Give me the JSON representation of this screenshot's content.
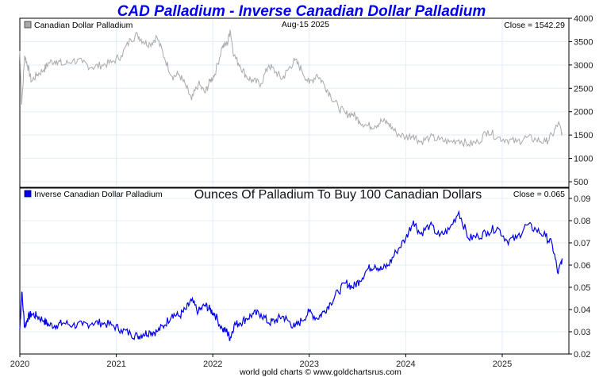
{
  "chart_data": [
    {
      "type": "line",
      "title": "CAD Palladium - Inverse Canadian Dollar Palladium",
      "date_label": "Aug-15  2025",
      "legend": "Canadian Dollar Palladium",
      "legend_color": "#aaaaaa",
      "close_label": "Close = 1542.29",
      "line_color": "#aaaaaa",
      "ylim": [
        500,
        4000
      ],
      "y_ticks": [
        "4000",
        "3500",
        "3000",
        "2500",
        "2000",
        "1500",
        "1000",
        "500"
      ],
      "x_ticks": [
        "2020",
        "2021",
        "2022",
        "2023",
        "2024",
        "2025"
      ],
      "x": [
        2020.0,
        2020.02,
        2020.05,
        2020.08,
        2020.12,
        2020.18,
        2020.25,
        2020.3,
        2020.38,
        2020.45,
        2020.55,
        2020.65,
        2020.75,
        2020.85,
        2020.95,
        2021.05,
        2021.15,
        2021.22,
        2021.28,
        2021.35,
        2021.42,
        2021.5,
        2021.58,
        2021.65,
        2021.72,
        2021.78,
        2021.85,
        2021.92,
        2021.97,
        2022.02,
        2022.1,
        2022.15,
        2022.18,
        2022.22,
        2022.28,
        2022.35,
        2022.42,
        2022.5,
        2022.58,
        2022.65,
        2022.72,
        2022.78,
        2022.85,
        2022.92,
        2023.0,
        2023.08,
        2023.15,
        2023.22,
        2023.3,
        2023.38,
        2023.45,
        2023.52,
        2023.6,
        2023.68,
        2023.75,
        2023.82,
        2023.9,
        2024.0,
        2024.08,
        2024.15,
        2024.25,
        2024.35,
        2024.45,
        2024.55,
        2024.65,
        2024.75,
        2024.85,
        2024.95,
        2025.05,
        2025.15,
        2025.25,
        2025.35,
        2025.45,
        2025.52,
        2025.58,
        2025.62
      ],
      "y": [
        3300,
        2150,
        3200,
        3000,
        2650,
        2800,
        2900,
        3050,
        3100,
        3000,
        3100,
        3050,
        2950,
        3000,
        3050,
        3200,
        3550,
        3650,
        3500,
        3450,
        3600,
        3150,
        2750,
        2800,
        2550,
        2250,
        2600,
        2400,
        2650,
        2800,
        3400,
        3450,
        3750,
        3200,
        3000,
        2750,
        2650,
        2600,
        3000,
        2850,
        2700,
        2900,
        3100,
        2900,
        2600,
        2800,
        2600,
        2350,
        2100,
        1950,
        1950,
        1800,
        1700,
        1700,
        1800,
        1750,
        1550,
        1450,
        1500,
        1350,
        1450,
        1400,
        1350,
        1400,
        1300,
        1350,
        1600,
        1450,
        1400,
        1350,
        1450,
        1400,
        1350,
        1500,
        1750,
        1550
      ]
    },
    {
      "type": "line",
      "subtitle": "Ounces Of Palladium To Buy 100 Canadian Dollars",
      "legend": "Inverse Canadian Dollar Palladium",
      "legend_color": "#0000ee",
      "close_label": "Close = 0.065",
      "line_color": "#0000ee",
      "ylim": [
        0.02,
        0.09
      ],
      "y_ticks": [
        "0.09",
        "0.08",
        "0.07",
        "0.06",
        "0.05",
        "0.04",
        "0.03",
        "0.02"
      ],
      "x_ticks": [
        "2020",
        "2021",
        "2022",
        "2023",
        "2024",
        "2025"
      ],
      "x": [
        2020.0,
        2020.02,
        2020.05,
        2020.08,
        2020.12,
        2020.18,
        2020.25,
        2020.3,
        2020.38,
        2020.45,
        2020.55,
        2020.65,
        2020.75,
        2020.85,
        2020.95,
        2021.05,
        2021.15,
        2021.22,
        2021.28,
        2021.35,
        2021.42,
        2021.5,
        2021.58,
        2021.65,
        2021.72,
        2021.78,
        2021.85,
        2021.92,
        2021.97,
        2022.02,
        2022.1,
        2022.15,
        2022.18,
        2022.22,
        2022.28,
        2022.35,
        2022.42,
        2022.5,
        2022.58,
        2022.65,
        2022.72,
        2022.78,
        2022.85,
        2022.92,
        2023.0,
        2023.08,
        2023.15,
        2023.22,
        2023.3,
        2023.38,
        2023.45,
        2023.52,
        2023.6,
        2023.68,
        2023.75,
        2023.82,
        2023.9,
        2024.0,
        2024.08,
        2024.15,
        2024.25,
        2024.35,
        2024.45,
        2024.55,
        2024.65,
        2024.75,
        2024.85,
        2024.95,
        2025.05,
        2025.15,
        2025.25,
        2025.35,
        2025.45,
        2025.52,
        2025.58,
        2025.62
      ],
      "y": [
        0.031,
        0.048,
        0.032,
        0.036,
        0.038,
        0.037,
        0.035,
        0.033,
        0.033,
        0.034,
        0.033,
        0.033,
        0.034,
        0.034,
        0.033,
        0.031,
        0.029,
        0.028,
        0.029,
        0.03,
        0.03,
        0.033,
        0.038,
        0.037,
        0.04,
        0.044,
        0.039,
        0.042,
        0.04,
        0.038,
        0.031,
        0.03,
        0.027,
        0.033,
        0.034,
        0.036,
        0.038,
        0.038,
        0.034,
        0.035,
        0.037,
        0.035,
        0.032,
        0.035,
        0.039,
        0.036,
        0.039,
        0.043,
        0.048,
        0.052,
        0.05,
        0.053,
        0.058,
        0.06,
        0.058,
        0.06,
        0.066,
        0.072,
        0.08,
        0.074,
        0.078,
        0.073,
        0.076,
        0.084,
        0.072,
        0.073,
        0.075,
        0.077,
        0.071,
        0.072,
        0.078,
        0.076,
        0.073,
        0.069,
        0.056,
        0.063
      ]
    }
  ],
  "footer": "world gold charts © www.goldchartsrus.com"
}
